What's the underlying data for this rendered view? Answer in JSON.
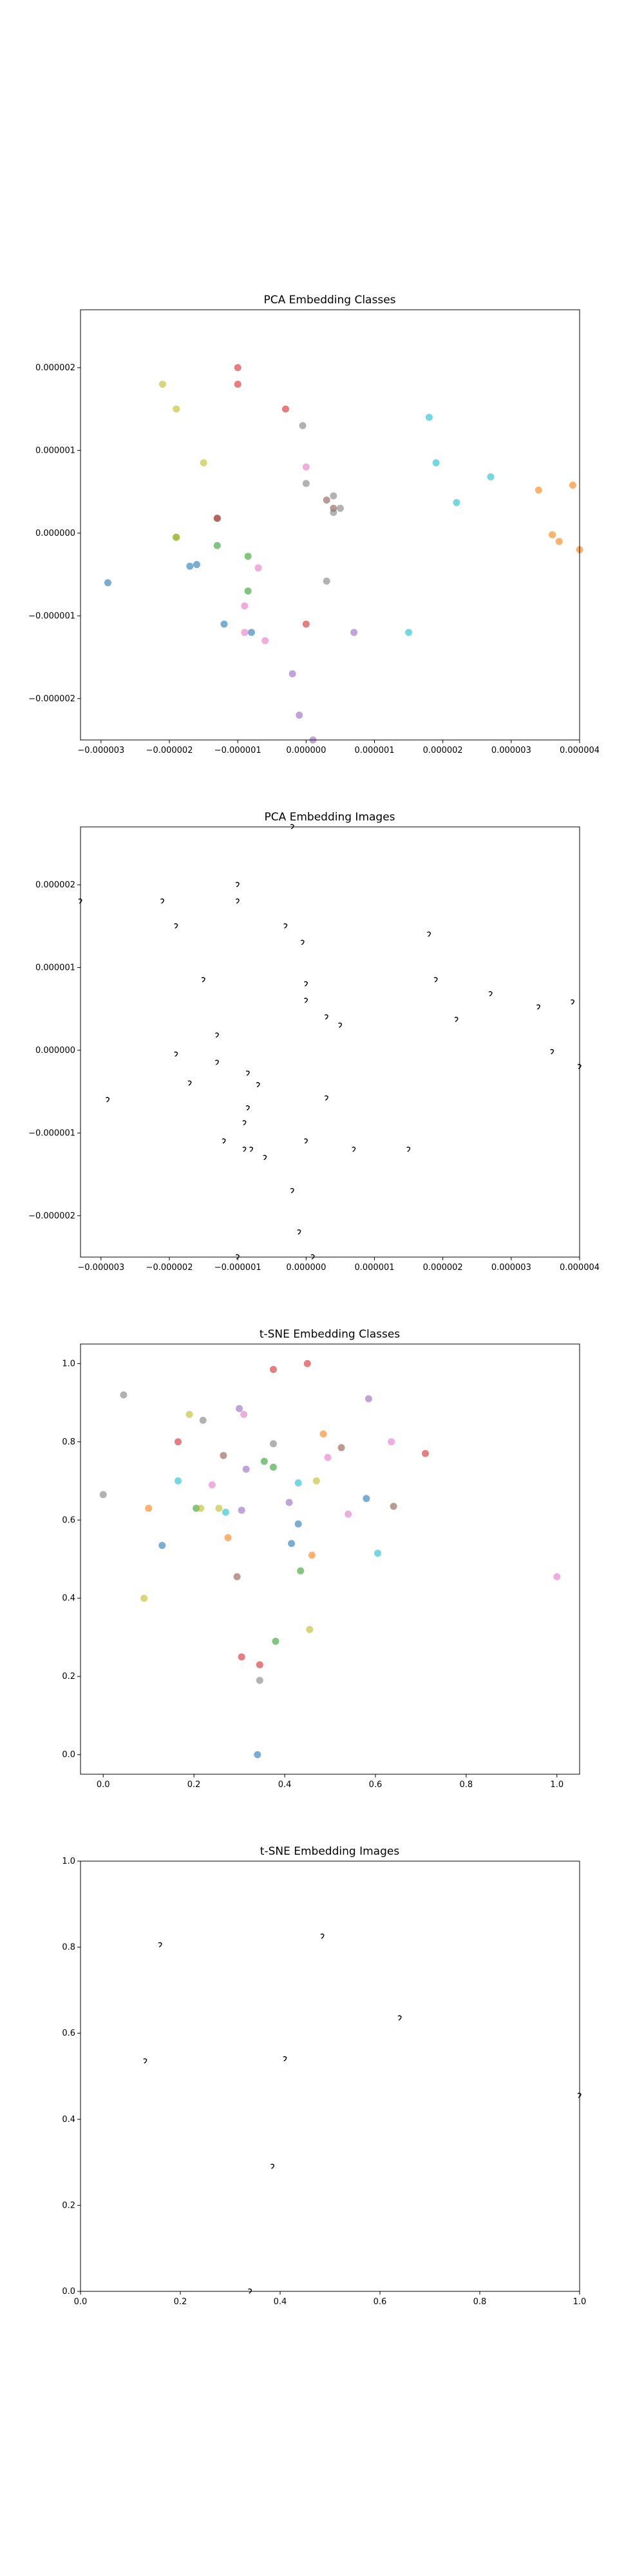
{
  "chart_data": [
    {
      "type": "scatter",
      "title": "PCA Embedding Classes",
      "xlabel": "",
      "ylabel": "",
      "xlim": [
        -3.3e-06,
        4e-06
      ],
      "ylim": [
        -2.5e-06,
        2.7e-06
      ],
      "grid": false,
      "xticks": [
        -3e-06,
        -2e-06,
        -1e-06,
        0.0,
        1e-06,
        2e-06,
        3e-06,
        4e-06
      ],
      "xtick_labels": [
        "−0.000003",
        "−0.000002",
        "−0.000001",
        "0.000000",
        "0.000001",
        "0.000002",
        "0.000003",
        "0.000004"
      ],
      "yticks": [
        -2e-06,
        -1e-06,
        0.0,
        1e-06,
        2e-06
      ],
      "ytick_labels": [
        "−0.000002",
        "−0.000001",
        "0.000000",
        "0.000001",
        "0.000002"
      ],
      "points": [
        {
          "x": -2.9e-06,
          "y": -6e-07,
          "color": "#1f77b4"
        },
        {
          "x": -2.1e-06,
          "y": 1.8e-06,
          "color": "#bcbd22"
        },
        {
          "x": -1.9e-06,
          "y": 1.5e-06,
          "color": "#bcbd22"
        },
        {
          "x": -1.5e-06,
          "y": 8.5e-07,
          "color": "#bcbd22"
        },
        {
          "x": -1.9e-06,
          "y": -5e-08,
          "color": "#2ca02c"
        },
        {
          "x": -1.9e-06,
          "y": -5e-08,
          "color": "#bcbd22"
        },
        {
          "x": -1.7e-06,
          "y": -4e-07,
          "color": "#1f77b4"
        },
        {
          "x": -1.6e-06,
          "y": -3.8e-07,
          "color": "#1f77b4"
        },
        {
          "x": -1.3e-06,
          "y": 1.8e-07,
          "color": "#d62728"
        },
        {
          "x": -1.3e-06,
          "y": 1.8e-07,
          "color": "#8c564b"
        },
        {
          "x": -1.3e-06,
          "y": -1.5e-07,
          "color": "#2ca02c"
        },
        {
          "x": -1.2e-06,
          "y": -1.1e-06,
          "color": "#1f77b4"
        },
        {
          "x": -1e-06,
          "y": 2e-06,
          "color": "#d62728"
        },
        {
          "x": -1e-06,
          "y": 1.8e-06,
          "color": "#d62728"
        },
        {
          "x": -8.5e-07,
          "y": -2.8e-07,
          "color": "#2ca02c"
        },
        {
          "x": -8.5e-07,
          "y": -7e-07,
          "color": "#2ca02c"
        },
        {
          "x": -9e-07,
          "y": -8.8e-07,
          "color": "#e377c2"
        },
        {
          "x": -9e-07,
          "y": -1.2e-06,
          "color": "#e377c2"
        },
        {
          "x": -8e-07,
          "y": -1.2e-06,
          "color": "#1f77b4"
        },
        {
          "x": -7e-07,
          "y": -4.2e-07,
          "color": "#e377c2"
        },
        {
          "x": -6e-07,
          "y": -1.3e-06,
          "color": "#e377c2"
        },
        {
          "x": -3e-07,
          "y": 1.5e-06,
          "color": "#d62728"
        },
        {
          "x": -2e-07,
          "y": -1.7e-06,
          "color": "#9467bd"
        },
        {
          "x": -1e-07,
          "y": -2.2e-06,
          "color": "#9467bd"
        },
        {
          "x": -5e-08,
          "y": 1.3e-06,
          "color": "#7f7f7f"
        },
        {
          "x": 0.0,
          "y": 8e-07,
          "color": "#e377c2"
        },
        {
          "x": 0.0,
          "y": 6e-07,
          "color": "#7f7f7f"
        },
        {
          "x": 0.0,
          "y": -1.1e-06,
          "color": "#d62728"
        },
        {
          "x": 1e-07,
          "y": -2.5e-06,
          "color": "#9467bd"
        },
        {
          "x": 3e-07,
          "y": 4e-07,
          "color": "#8c564b"
        },
        {
          "x": 4e-07,
          "y": 3e-07,
          "color": "#8c564b"
        },
        {
          "x": 4e-07,
          "y": 4.5e-07,
          "color": "#7f7f7f"
        },
        {
          "x": 5e-07,
          "y": 3e-07,
          "color": "#7f7f7f"
        },
        {
          "x": 4e-07,
          "y": 2.5e-07,
          "color": "#7f7f7f"
        },
        {
          "x": 3e-07,
          "y": -5.8e-07,
          "color": "#7f7f7f"
        },
        {
          "x": 7e-07,
          "y": -1.2e-06,
          "color": "#9467bd"
        },
        {
          "x": 1.5e-06,
          "y": -1.2e-06,
          "color": "#17becf"
        },
        {
          "x": 1.8e-06,
          "y": 1.4e-06,
          "color": "#17becf"
        },
        {
          "x": 1.9e-06,
          "y": 8.5e-07,
          "color": "#17becf"
        },
        {
          "x": 2.2e-06,
          "y": 3.7e-07,
          "color": "#17becf"
        },
        {
          "x": 2.7e-06,
          "y": 6.8e-07,
          "color": "#17becf"
        },
        {
          "x": 3.4e-06,
          "y": 5.2e-07,
          "color": "#ff7f0e"
        },
        {
          "x": 3.6e-06,
          "y": -2e-08,
          "color": "#ff7f0e"
        },
        {
          "x": 3.7e-06,
          "y": -1e-07,
          "color": "#ff7f0e"
        },
        {
          "x": 3.9e-06,
          "y": 5.8e-07,
          "color": "#ff7f0e"
        },
        {
          "x": 4e-06,
          "y": -2e-07,
          "color": "#ff7f0e"
        }
      ]
    },
    {
      "type": "scatter",
      "title": "PCA Embedding Images",
      "xlabel": "",
      "ylabel": "",
      "xlim": [
        -3.3e-06,
        4e-06
      ],
      "ylim": [
        -2.5e-06,
        2.7e-06
      ],
      "grid": false,
      "xticks": [
        -3e-06,
        -2e-06,
        -1e-06,
        0.0,
        1e-06,
        2e-06,
        3e-06,
        4e-06
      ],
      "xtick_labels": [
        "−0.000003",
        "−0.000002",
        "−0.000001",
        "0.000000",
        "0.000001",
        "0.000002",
        "0.000003",
        "0.000004"
      ],
      "yticks": [
        -2e-06,
        -1e-06,
        0.0,
        1e-06,
        2e-06
      ],
      "ytick_labels": [
        "−0.000002",
        "−0.000001",
        "0.000000",
        "0.000001",
        "0.000002"
      ],
      "glyph_marker_color": "#000000",
      "points": [
        {
          "x": -2.9e-06,
          "y": -6e-07
        },
        {
          "x": -2.1e-06,
          "y": 1.8e-06
        },
        {
          "x": -1.9e-06,
          "y": 1.5e-06
        },
        {
          "x": -1.5e-06,
          "y": 8.5e-07
        },
        {
          "x": -1.9e-06,
          "y": -5e-08
        },
        {
          "x": -1.7e-06,
          "y": -4e-07
        },
        {
          "x": -1.3e-06,
          "y": 1.8e-07
        },
        {
          "x": -1.3e-06,
          "y": -1.5e-07
        },
        {
          "x": -1.2e-06,
          "y": -1.1e-06
        },
        {
          "x": -1e-06,
          "y": 2e-06
        },
        {
          "x": -1e-06,
          "y": 1.8e-06
        },
        {
          "x": -8.5e-07,
          "y": -2.8e-07
        },
        {
          "x": -8.5e-07,
          "y": -7e-07
        },
        {
          "x": -9e-07,
          "y": -8.8e-07
        },
        {
          "x": -9e-07,
          "y": -1.2e-06
        },
        {
          "x": -8e-07,
          "y": -1.2e-06
        },
        {
          "x": -7e-07,
          "y": -4.2e-07
        },
        {
          "x": -6e-07,
          "y": -1.3e-06
        },
        {
          "x": -3e-07,
          "y": 1.5e-06
        },
        {
          "x": -2e-07,
          "y": -1.7e-06
        },
        {
          "x": -1e-07,
          "y": -2.2e-06
        },
        {
          "x": -5e-08,
          "y": 1.3e-06
        },
        {
          "x": 0.0,
          "y": 8e-07
        },
        {
          "x": 0.0,
          "y": 6e-07
        },
        {
          "x": 0.0,
          "y": -1.1e-06
        },
        {
          "x": 1e-07,
          "y": -2.5e-06
        },
        {
          "x": 3e-07,
          "y": 4e-07
        },
        {
          "x": 5e-07,
          "y": 3e-07
        },
        {
          "x": 3e-07,
          "y": -5.8e-07
        },
        {
          "x": 7e-07,
          "y": -1.2e-06
        },
        {
          "x": 1.5e-06,
          "y": -1.2e-06
        },
        {
          "x": 1.8e-06,
          "y": 1.4e-06
        },
        {
          "x": 1.9e-06,
          "y": 8.5e-07
        },
        {
          "x": 2.2e-06,
          "y": 3.7e-07
        },
        {
          "x": 2.7e-06,
          "y": 6.8e-07
        },
        {
          "x": 3.4e-06,
          "y": 5.2e-07
        },
        {
          "x": 3.6e-06,
          "y": -2e-08
        },
        {
          "x": 3.9e-06,
          "y": 5.8e-07
        },
        {
          "x": 4e-06,
          "y": -2e-07
        },
        {
          "x": -3.3e-06,
          "y": 1.8e-06
        },
        {
          "x": -1e-06,
          "y": -2.5e-06
        },
        {
          "x": -2e-07,
          "y": 2.7e-06
        }
      ]
    },
    {
      "type": "scatter",
      "title": "t-SNE Embedding Classes",
      "xlabel": "",
      "ylabel": "",
      "xlim": [
        -0.05,
        1.05
      ],
      "ylim": [
        -0.05,
        1.05
      ],
      "grid": false,
      "xticks": [
        0.0,
        0.2,
        0.4,
        0.6,
        0.8,
        1.0
      ],
      "xtick_labels": [
        "0.0",
        "0.2",
        "0.4",
        "0.6",
        "0.8",
        "1.0"
      ],
      "yticks": [
        0.0,
        0.2,
        0.4,
        0.6,
        0.8,
        1.0
      ],
      "ytick_labels": [
        "0.0",
        "0.2",
        "0.4",
        "0.6",
        "0.8",
        "1.0"
      ],
      "points": [
        {
          "x": 0.0,
          "y": 0.665,
          "color": "#7f7f7f"
        },
        {
          "x": 0.045,
          "y": 0.92,
          "color": "#7f7f7f"
        },
        {
          "x": 0.09,
          "y": 0.4,
          "color": "#bcbd22"
        },
        {
          "x": 0.1,
          "y": 0.63,
          "color": "#ff7f0e"
        },
        {
          "x": 0.13,
          "y": 0.535,
          "color": "#1f77b4"
        },
        {
          "x": 0.165,
          "y": 0.7,
          "color": "#17becf"
        },
        {
          "x": 0.165,
          "y": 0.8,
          "color": "#d62728"
        },
        {
          "x": 0.19,
          "y": 0.87,
          "color": "#bcbd22"
        },
        {
          "x": 0.205,
          "y": 0.63,
          "color": "#2ca02c"
        },
        {
          "x": 0.215,
          "y": 0.63,
          "color": "#bcbd22"
        },
        {
          "x": 0.22,
          "y": 0.855,
          "color": "#7f7f7f"
        },
        {
          "x": 0.24,
          "y": 0.69,
          "color": "#e377c2"
        },
        {
          "x": 0.255,
          "y": 0.63,
          "color": "#bcbd22"
        },
        {
          "x": 0.265,
          "y": 0.765,
          "color": "#8c564b"
        },
        {
          "x": 0.27,
          "y": 0.62,
          "color": "#17becf"
        },
        {
          "x": 0.275,
          "y": 0.555,
          "color": "#ff7f0e"
        },
        {
          "x": 0.295,
          "y": 0.455,
          "color": "#8c564b"
        },
        {
          "x": 0.3,
          "y": 0.885,
          "color": "#9467bd"
        },
        {
          "x": 0.305,
          "y": 0.625,
          "color": "#9467bd"
        },
        {
          "x": 0.305,
          "y": 0.25,
          "color": "#d62728"
        },
        {
          "x": 0.31,
          "y": 0.87,
          "color": "#e377c2"
        },
        {
          "x": 0.315,
          "y": 0.73,
          "color": "#9467bd"
        },
        {
          "x": 0.34,
          "y": 0.0,
          "color": "#1f77b4"
        },
        {
          "x": 0.345,
          "y": 0.23,
          "color": "#d62728"
        },
        {
          "x": 0.345,
          "y": 0.19,
          "color": "#7f7f7f"
        },
        {
          "x": 0.355,
          "y": 0.75,
          "color": "#2ca02c"
        },
        {
          "x": 0.375,
          "y": 0.985,
          "color": "#d62728"
        },
        {
          "x": 0.375,
          "y": 0.795,
          "color": "#7f7f7f"
        },
        {
          "x": 0.375,
          "y": 0.735,
          "color": "#2ca02c"
        },
        {
          "x": 0.38,
          "y": 0.29,
          "color": "#2ca02c"
        },
        {
          "x": 0.41,
          "y": 0.645,
          "color": "#9467bd"
        },
        {
          "x": 0.415,
          "y": 0.54,
          "color": "#1f77b4"
        },
        {
          "x": 0.43,
          "y": 0.695,
          "color": "#17becf"
        },
        {
          "x": 0.43,
          "y": 0.59,
          "color": "#1f77b4"
        },
        {
          "x": 0.435,
          "y": 0.47,
          "color": "#2ca02c"
        },
        {
          "x": 0.45,
          "y": 1.0,
          "color": "#d62728"
        },
        {
          "x": 0.455,
          "y": 0.32,
          "color": "#bcbd22"
        },
        {
          "x": 0.46,
          "y": 0.51,
          "color": "#ff7f0e"
        },
        {
          "x": 0.47,
          "y": 0.7,
          "color": "#bcbd22"
        },
        {
          "x": 0.485,
          "y": 0.82,
          "color": "#ff7f0e"
        },
        {
          "x": 0.495,
          "y": 0.76,
          "color": "#e377c2"
        },
        {
          "x": 0.525,
          "y": 0.785,
          "color": "#8c564b"
        },
        {
          "x": 0.54,
          "y": 0.615,
          "color": "#e377c2"
        },
        {
          "x": 0.58,
          "y": 0.655,
          "color": "#1f77b4"
        },
        {
          "x": 0.585,
          "y": 0.91,
          "color": "#9467bd"
        },
        {
          "x": 0.605,
          "y": 0.515,
          "color": "#17becf"
        },
        {
          "x": 0.635,
          "y": 0.8,
          "color": "#e377c2"
        },
        {
          "x": 0.64,
          "y": 0.635,
          "color": "#8c564b"
        },
        {
          "x": 0.71,
          "y": 0.77,
          "color": "#d62728"
        },
        {
          "x": 1.0,
          "y": 0.455,
          "color": "#e377c2"
        }
      ]
    },
    {
      "type": "scatter",
      "title": "t-SNE Embedding Images",
      "xlabel": "",
      "ylabel": "",
      "xlim": [
        0.0,
        1.0
      ],
      "ylim": [
        0.0,
        1.0
      ],
      "grid": false,
      "xticks": [
        0.0,
        0.2,
        0.4,
        0.6,
        0.8,
        1.0
      ],
      "xtick_labels": [
        "0.0",
        "0.2",
        "0.4",
        "0.6",
        "0.8",
        "1.0"
      ],
      "yticks": [
        0.0,
        0.2,
        0.4,
        0.6,
        0.8,
        1.0
      ],
      "ytick_labels": [
        "0.0",
        "0.2",
        "0.4",
        "0.6",
        "0.8",
        "1.0"
      ],
      "glyph_marker_color": "#000000",
      "points": [
        {
          "x": 0.16,
          "y": 0.805
        },
        {
          "x": 0.485,
          "y": 0.825
        },
        {
          "x": 0.13,
          "y": 0.535
        },
        {
          "x": 0.41,
          "y": 0.54
        },
        {
          "x": 0.64,
          "y": 0.635
        },
        {
          "x": 0.385,
          "y": 0.29
        },
        {
          "x": 1.0,
          "y": 0.455
        },
        {
          "x": 0.34,
          "y": 0.0
        }
      ]
    }
  ]
}
